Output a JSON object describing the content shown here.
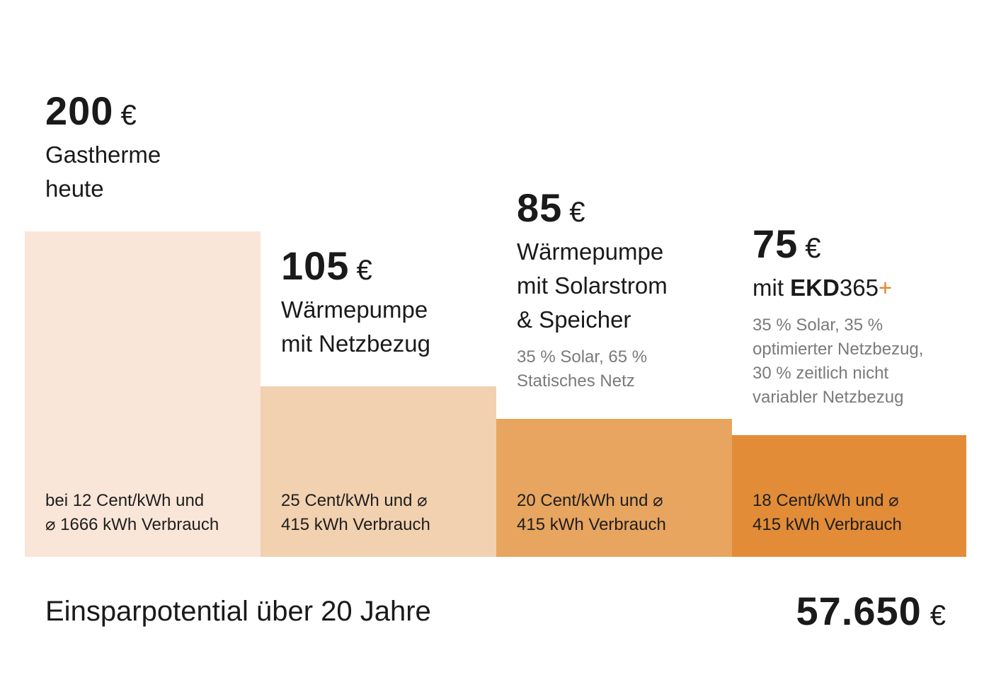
{
  "chart_data": {
    "type": "bar",
    "unit": "€",
    "categories": [
      "Gastherme heute",
      "Wärmepumpe mit Netzbezug",
      "Wärmepumpe mit Solarstrom & Speicher",
      "mit EKD365+"
    ],
    "values": [
      200,
      105,
      85,
      75
    ],
    "ylim": [
      0,
      200
    ],
    "grid": false,
    "colors": [
      "#f9e6d8",
      "#f2d1b0",
      "#e7a55f",
      "#e28c37"
    ]
  },
  "bars": [
    {
      "value": "200",
      "currency": "€",
      "label": "Gastherme\nheute",
      "note": "",
      "footer": "bei 12 Cent/kWh und\n⌀ 1666 kWh Verbrauch"
    },
    {
      "value": "105",
      "currency": "€",
      "label": "Wärmepumpe\nmit Netzbezug",
      "note": "",
      "footer": "25 Cent/kWh und ⌀\n415 kWh Verbrauch"
    },
    {
      "value": "85",
      "currency": "€",
      "label": "Wärmepumpe\nmit Solarstrom\n& Speicher",
      "note": "35 % Solar, 65 %\nStatisches Netz",
      "footer": "20 Cent/kWh und ⌀\n415 kWh Verbrauch"
    },
    {
      "value": "75",
      "currency": "€",
      "label_prefix": "mit ",
      "label_brand": "EKD",
      "label_suffix": "365",
      "label_plus": "+",
      "note": "35 % Solar, 35 %\noptimierter Netzbezug,\n30 % zeitlich nicht\nvariabler Netzbezug",
      "footer": "18 Cent/kWh und ⌀\n415 kWh Verbrauch"
    }
  ],
  "savings": {
    "label": "Einsparpotential über 20 Jahre",
    "value": "57.650",
    "currency": "€"
  }
}
